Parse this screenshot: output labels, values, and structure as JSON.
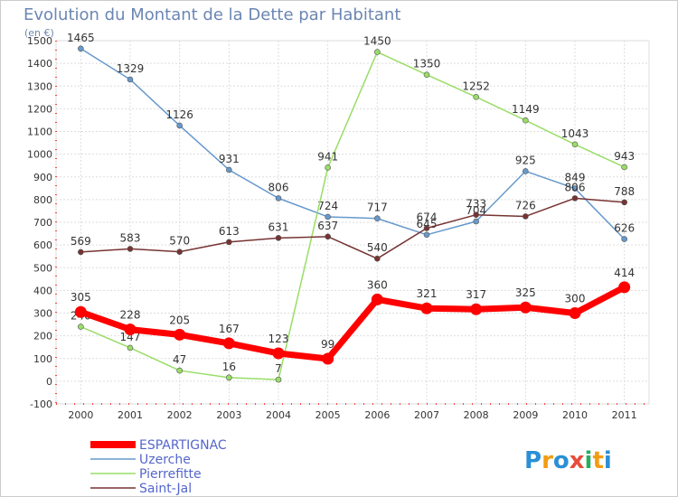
{
  "chart_data": {
    "type": "line",
    "title": "Evolution du Montant de la Dette par Habitant",
    "subtitle": "(en €)",
    "xlabel": "",
    "ylabel": "",
    "x": [
      "2000",
      "2001",
      "2002",
      "2003",
      "2004",
      "2005",
      "2006",
      "2007",
      "2008",
      "2009",
      "2010",
      "2011"
    ],
    "y_ticks": [
      "-100",
      "0",
      "100",
      "200",
      "300",
      "400",
      "500",
      "600",
      "700",
      "800",
      "900",
      "1000",
      "1100",
      "1200",
      "1300",
      "1400",
      "1500"
    ],
    "ylim": [
      -100,
      1500
    ],
    "grid": true,
    "legend_position": "bottom-left",
    "series": [
      {
        "name": "ESPARTIGNAC",
        "color": "#ff0000",
        "emphasis": true,
        "values": [
          305,
          228,
          205,
          167,
          123,
          99,
          360,
          321,
          317,
          325,
          300,
          414
        ],
        "labels": [
          "305",
          "228",
          "205",
          "167",
          "123",
          "99",
          "360",
          "321",
          "317",
          "325",
          "300",
          "414"
        ]
      },
      {
        "name": "Uzerche",
        "color": "#6699cc",
        "emphasis": false,
        "values": [
          1465,
          1329,
          1126,
          931,
          806,
          724,
          717,
          645,
          704,
          925,
          849,
          626
        ],
        "labels": [
          "1465",
          "1329",
          "1126",
          "931",
          "806",
          "724",
          "717",
          "645",
          "704",
          "925",
          "849",
          "626"
        ]
      },
      {
        "name": "Pierrefitte",
        "color": "#99dd66",
        "emphasis": false,
        "values": [
          240,
          147,
          47,
          16,
          7,
          941,
          1450,
          1350,
          1252,
          1149,
          1043,
          943
        ],
        "labels": [
          "240",
          "147",
          "47",
          "16",
          "7",
          "941",
          "1450",
          "1350",
          "1252",
          "1149",
          "1043",
          "943"
        ]
      },
      {
        "name": "Saint-Jal",
        "color": "#773333",
        "emphasis": false,
        "values": [
          569,
          583,
          570,
          613,
          631,
          637,
          540,
          674,
          733,
          726,
          806,
          788
        ],
        "labels": [
          "569",
          "583",
          "570",
          "613",
          "631",
          "637",
          "540",
          "674",
          "733",
          "726",
          "806",
          "788"
        ]
      }
    ],
    "logo": "Proxiti"
  }
}
